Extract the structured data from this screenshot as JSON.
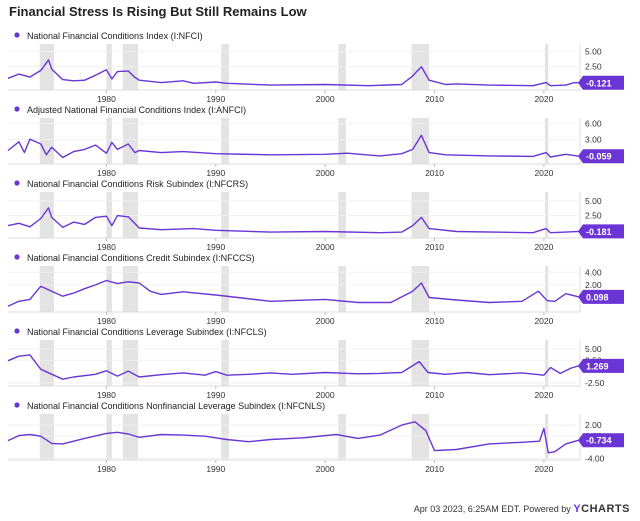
{
  "title": "Financial Stress Is Rising But Still Remains Low",
  "footer": {
    "timestamp": "Apr 03 2023, 6:25AM EDT.",
    "powered_by": "Powered by",
    "brand_mark": "Y",
    "brand_name": "CHARTS"
  },
  "colors": {
    "line": "#6b35d6",
    "recession": "#e3e3e3",
    "grid": "#dddddd",
    "text": "#333333"
  },
  "x_ticks": [
    "1980",
    "1990",
    "2000",
    "2010",
    "2020"
  ],
  "chart_data": [
    {
      "type": "line",
      "series_name": "National Financial Conditions Index (I:NFCI)",
      "current_value": "-0.121",
      "y_ticks": [
        "5.00",
        "2.50"
      ],
      "xlim": [
        1971,
        2023.3
      ],
      "ylim": [
        -1.3,
        6.2
      ],
      "x": [
        1971,
        1972,
        1973,
        1974,
        1974.7,
        1975,
        1976,
        1977,
        1978,
        1979,
        1980,
        1980.5,
        1981,
        1982,
        1982.5,
        1983,
        1985,
        1987,
        1988,
        1990,
        1991,
        1995,
        2000,
        2004,
        2007,
        2008,
        2008.8,
        2009.5,
        2011,
        2012,
        2015,
        2019,
        2020.2,
        2020.6,
        2022,
        2022.8,
        2023.2
      ],
      "y": [
        0.6,
        1.3,
        0.8,
        1.9,
        3.6,
        2.1,
        0.4,
        0.2,
        0.3,
        1.1,
        2.0,
        0.5,
        1.7,
        1.8,
        0.9,
        0.3,
        -0.1,
        0.2,
        -0.2,
        0.0,
        -0.2,
        -0.5,
        -0.4,
        -0.6,
        -0.4,
        1.0,
        2.5,
        0.3,
        -0.4,
        -0.3,
        -0.5,
        -0.6,
        -0.1,
        -0.6,
        -0.5,
        -0.1,
        -0.121
      ]
    },
    {
      "type": "line",
      "series_name": "Adjusted National Financial Conditions Index (I:ANFCI)",
      "current_value": "-0.059",
      "y_ticks": [
        "6.00",
        "3.00"
      ],
      "xlim": [
        1971,
        2023.3
      ],
      "ylim": [
        -1.5,
        7.0
      ],
      "x": [
        1971,
        1972,
        1972.5,
        1973,
        1974,
        1974.5,
        1975,
        1976,
        1977,
        1978,
        1979,
        1980,
        1980.5,
        1981,
        1982,
        1982.6,
        1983,
        1985,
        1987,
        1990,
        1995,
        2000,
        2002,
        2005,
        2007,
        2008,
        2008.8,
        2009.5,
        2011,
        2015,
        2019,
        2020.2,
        2020.6,
        2022,
        2023.2
      ],
      "y": [
        1.0,
        2.6,
        0.6,
        3.1,
        2.2,
        0.2,
        1.6,
        -0.3,
        0.8,
        1.2,
        2.0,
        0.5,
        2.5,
        1.2,
        2.2,
        0.6,
        1.0,
        0.6,
        0.8,
        0.4,
        0.2,
        0.3,
        0.5,
        0.0,
        0.4,
        1.2,
        3.8,
        0.6,
        0.2,
        0.0,
        -0.1,
        0.6,
        -0.2,
        0.3,
        -0.059
      ]
    },
    {
      "type": "line",
      "series_name": "National Financial Conditions Risk Subindex (I:NFCRS)",
      "current_value": "-0.181",
      "y_ticks": [
        "5.00",
        "2.50"
      ],
      "xlim": [
        1971,
        2023.3
      ],
      "ylim": [
        -1.3,
        6.5
      ],
      "x": [
        1971,
        1972,
        1973,
        1974,
        1974.7,
        1975,
        1976,
        1977,
        1978,
        1979,
        1980,
        1980.5,
        1981,
        1982,
        1983,
        1985,
        1988,
        1990,
        1995,
        2000,
        2005,
        2007,
        2008,
        2008.8,
        2009.5,
        2012,
        2019,
        2020.2,
        2020.6,
        2022,
        2023.2
      ],
      "y": [
        0.8,
        1.2,
        0.6,
        2.0,
        3.8,
        2.2,
        0.5,
        1.4,
        1.0,
        2.2,
        2.4,
        0.8,
        2.5,
        2.3,
        0.4,
        0.1,
        0.3,
        0.0,
        -0.3,
        -0.2,
        -0.4,
        -0.3,
        0.8,
        2.2,
        0.3,
        -0.2,
        -0.4,
        0.3,
        -0.4,
        -0.3,
        -0.181
      ]
    },
    {
      "type": "line",
      "series_name": "National Financial Conditions Credit Subindex (I:NFCCS)",
      "current_value": "0.098",
      "y_ticks": [
        "4.00",
        "2.00"
      ],
      "xlim": [
        1971,
        2023.3
      ],
      "ylim": [
        -2.3,
        5.0
      ],
      "x": [
        1971,
        1972,
        1973,
        1974,
        1975,
        1976,
        1977,
        1978,
        1979,
        1980,
        1981,
        1982,
        1983,
        1984,
        1985,
        1987,
        1990,
        1992,
        1995,
        2000,
        2003,
        2006,
        2008,
        2008.8,
        2009.5,
        2012,
        2015,
        2018,
        2019.5,
        2020.3,
        2021,
        2022,
        2023.2
      ],
      "y": [
        -1.4,
        -0.6,
        -0.3,
        1.8,
        1.0,
        0.2,
        0.7,
        1.4,
        2.0,
        2.7,
        2.2,
        2.5,
        2.3,
        1.0,
        0.5,
        0.9,
        0.4,
        0.0,
        -0.6,
        -0.3,
        -0.8,
        -0.8,
        1.0,
        2.3,
        0.0,
        -0.4,
        -0.8,
        -0.6,
        1.0,
        -0.5,
        -0.6,
        0.6,
        0.098
      ]
    },
    {
      "type": "line",
      "series_name": "National Financial Conditions Leverage Subindex (I:NFCLS)",
      "current_value": "1.269",
      "y_ticks": [
        "5.00",
        "2.50",
        "-2.50"
      ],
      "xlim": [
        1971,
        2023.3
      ],
      "ylim": [
        -3.2,
        7.0
      ],
      "x": [
        1971,
        1972,
        1973,
        1974,
        1976,
        1977,
        1979,
        1980,
        1981,
        1982,
        1983,
        1985,
        1987,
        1989,
        1990,
        1991,
        1993,
        1995,
        1997,
        2000,
        2003,
        2005,
        2007,
        2008.6,
        2009.4,
        2011,
        2013,
        2015,
        2018,
        2020,
        2020.6,
        2021.5,
        2022.5,
        2023.2
      ],
      "y": [
        2.4,
        3.4,
        3.7,
        0.5,
        -1.7,
        -1.2,
        -0.6,
        0.2,
        -1.0,
        0.1,
        -1.2,
        -0.7,
        -0.3,
        -0.8,
        0.0,
        -0.8,
        -0.6,
        -0.3,
        -0.6,
        -0.2,
        -0.5,
        -0.4,
        -0.2,
        2.2,
        -0.2,
        -0.6,
        -0.2,
        -0.7,
        -0.3,
        -0.8,
        0.9,
        -0.4,
        0.8,
        1.269
      ]
    },
    {
      "type": "line",
      "series_name": "National Financial Conditions Nonfinancial Leverage Subindex (I:NFCNLS)",
      "current_value": "-0.734",
      "y_ticks": [
        "2.00",
        "0.00",
        "-4.00"
      ],
      "xlim": [
        1971,
        2023.3
      ],
      "ylim": [
        -4.3,
        4.0
      ],
      "x": [
        1971,
        1972,
        1973,
        1974,
        1975,
        1976,
        1978,
        1980,
        1981,
        1982,
        1983,
        1985,
        1987,
        1989,
        1991,
        1993,
        1995,
        1998,
        2001,
        2003,
        2005,
        2007,
        2008.2,
        2009.2,
        2010,
        2012,
        2015,
        2018,
        2019.6,
        2020,
        2020.4,
        2021,
        2022,
        2023.2
      ],
      "y": [
        -0.8,
        0.1,
        0.3,
        0.0,
        -1.3,
        -1.4,
        -0.4,
        0.5,
        0.7,
        0.4,
        -0.2,
        0.3,
        0.2,
        0.0,
        -0.6,
        -1.0,
        -0.6,
        -0.3,
        0.3,
        -0.4,
        0.2,
        2.0,
        2.6,
        1.0,
        -2.6,
        -2.4,
        -1.4,
        -1.1,
        -0.9,
        1.4,
        -3.0,
        -2.8,
        -1.4,
        -0.734
      ]
    }
  ]
}
